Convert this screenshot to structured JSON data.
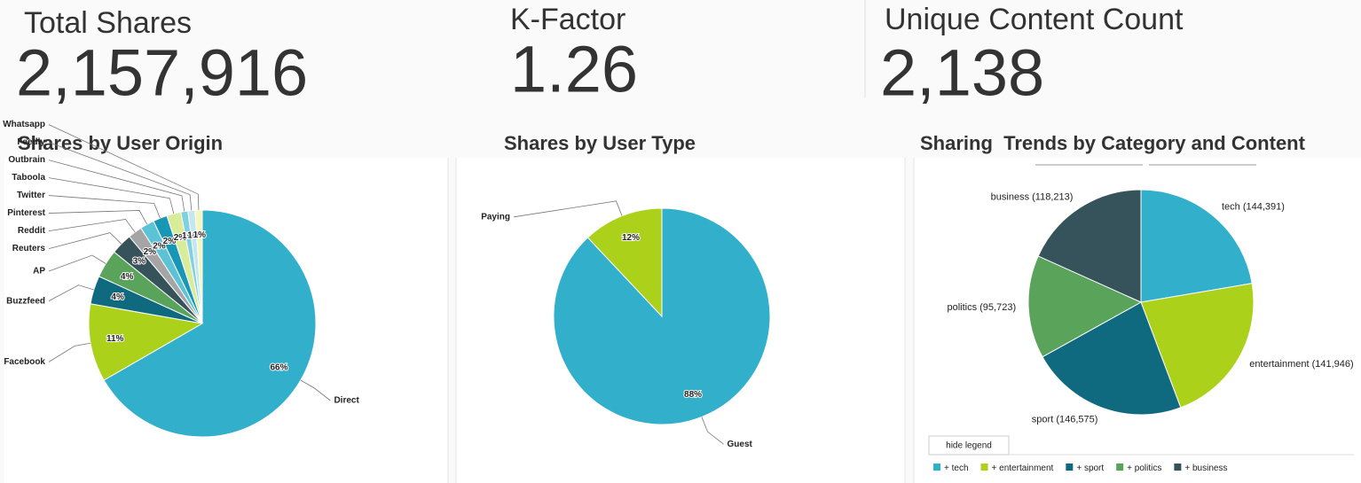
{
  "kpis": [
    {
      "label": "Total Shares",
      "value": "2,157,916"
    },
    {
      "label": "K-Factor",
      "value": "1.26"
    },
    {
      "label": "Unique Content Count",
      "value": "2,138"
    }
  ],
  "chart_data": [
    {
      "type": "pie",
      "title": "Shares by User Origin",
      "label_style": "inside-percent",
      "categories": [
        "Direct",
        "Facebook",
        "Buzzfeed",
        "AP",
        "Reuters",
        "Reddit",
        "Pinterest",
        "Twitter",
        "Taboola",
        "Outbrain",
        "Feedly",
        "Whatsapp"
      ],
      "values": [
        66,
        11,
        4,
        4,
        3,
        2,
        2,
        2,
        2,
        1,
        1,
        1
      ],
      "value_labels": [
        "66%",
        "11%",
        "4%",
        "4%",
        "3%",
        "2%",
        "2%",
        "2%",
        "2%",
        "1%",
        "1%",
        "1%"
      ],
      "colors": [
        "#31afcb",
        "#acd11a",
        "#0f6a80",
        "#5aa35a",
        "#36525a",
        "#a5a5a5",
        "#5cc3d6",
        "#1797b5",
        "#d9ec9a",
        "#7fd0e0",
        "#c3e7f0",
        "#f4f7b8"
      ]
    },
    {
      "type": "pie",
      "title": "Shares by User Type",
      "label_style": "inside-percent",
      "categories": [
        "Guest",
        "Paying"
      ],
      "values": [
        88,
        12
      ],
      "value_labels": [
        "88%",
        "12%"
      ],
      "colors": [
        "#31afcb",
        "#acd11a"
      ]
    },
    {
      "type": "pie",
      "title": "Sharing  Trends by Category and Content",
      "label_style": "outside-value",
      "categories": [
        "tech",
        "entertainment",
        "sport",
        "politics",
        "business"
      ],
      "values": [
        144391,
        141946,
        146575,
        95723,
        118213
      ],
      "value_labels": [
        "(144,391)",
        "(141,946)",
        "(146,575)",
        "(95,723)",
        "(118,213)"
      ],
      "colors": [
        "#31afcb",
        "#acd11a",
        "#0f6a80",
        "#5aa35a",
        "#36525a"
      ],
      "legend": true,
      "legend_marker": "+",
      "legend_toggle": "hide legend"
    }
  ]
}
